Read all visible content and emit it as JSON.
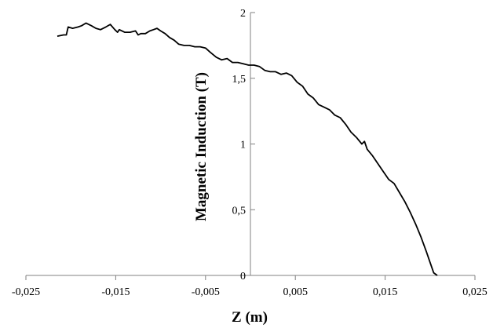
{
  "chart_data": {
    "type": "line",
    "xlabel": "Z (m)",
    "ylabel": "Magnetic Induction  (T)",
    "xlim": [
      -0.025,
      0.025
    ],
    "ylim": [
      0,
      2
    ],
    "x_ticks": [
      -0.025,
      -0.015,
      -0.005,
      0.005,
      0.015,
      0.025
    ],
    "x_tick_labels": [
      "-0,025",
      "-0,015",
      "-0,005",
      "0,005",
      "0,015",
      "0,025"
    ],
    "y_ticks": [
      0,
      0.5,
      1,
      1.5,
      2
    ],
    "y_tick_labels": [
      "0",
      "0,5",
      "1",
      "1,5",
      "2"
    ],
    "grid": false,
    "line_color": "#000000",
    "series": [
      {
        "x": [
          -0.0215,
          -0.0208,
          -0.0205,
          -0.0203,
          -0.0198,
          -0.0192,
          -0.0188,
          -0.0183,
          -0.0177,
          -0.0172,
          -0.0167,
          -0.0161,
          -0.0156,
          -0.0151,
          -0.0148,
          -0.0146,
          -0.014,
          -0.0134,
          -0.0128,
          -0.0125,
          -0.0122,
          -0.0117,
          -0.0112,
          -0.0108,
          -0.0104,
          -0.01,
          -0.0095,
          -0.009,
          -0.0085,
          -0.008,
          -0.0074,
          -0.0068,
          -0.0062,
          -0.0056,
          -0.005,
          -0.0045,
          -0.0038,
          -0.0032,
          -0.0026,
          -0.002,
          -0.0014,
          -0.0008,
          -0.0002,
          0.0004,
          0.001,
          0.0016,
          0.0022,
          0.0028,
          0.0034,
          0.004,
          0.0046,
          0.0052,
          0.0058,
          0.0064,
          0.007,
          0.0076,
          0.0082,
          0.0088,
          0.0094,
          0.01,
          0.0106,
          0.0112,
          0.0118,
          0.0124,
          0.0127,
          0.013,
          0.0136,
          0.0142,
          0.0148,
          0.0154,
          0.016,
          0.0166,
          0.0172,
          0.0178,
          0.0184,
          0.019,
          0.0196,
          0.02,
          0.0204,
          0.0208
        ],
        "values": [
          1.82,
          1.83,
          1.83,
          1.89,
          1.88,
          1.89,
          1.9,
          1.92,
          1.9,
          1.88,
          1.87,
          1.89,
          1.91,
          1.87,
          1.85,
          1.87,
          1.85,
          1.85,
          1.86,
          1.83,
          1.84,
          1.84,
          1.86,
          1.87,
          1.88,
          1.86,
          1.84,
          1.81,
          1.79,
          1.76,
          1.75,
          1.75,
          1.74,
          1.74,
          1.73,
          1.7,
          1.66,
          1.64,
          1.65,
          1.62,
          1.62,
          1.61,
          1.6,
          1.6,
          1.59,
          1.56,
          1.55,
          1.55,
          1.53,
          1.54,
          1.52,
          1.47,
          1.44,
          1.38,
          1.35,
          1.3,
          1.28,
          1.26,
          1.22,
          1.2,
          1.15,
          1.09,
          1.05,
          1.0,
          1.02,
          0.96,
          0.91,
          0.85,
          0.79,
          0.73,
          0.7,
          0.63,
          0.56,
          0.48,
          0.39,
          0.29,
          0.18,
          0.1,
          0.02,
          0.0
        ]
      }
    ]
  }
}
